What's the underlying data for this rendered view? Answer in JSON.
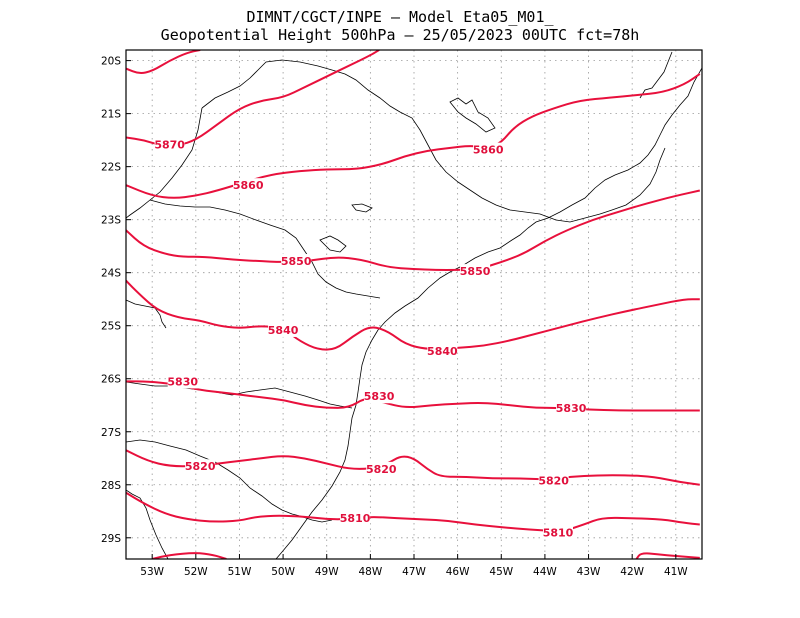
{
  "header": {
    "line1": "DIMNT/CGCT/INPE –  Model Eta05_M01_",
    "line2": "Geopotential Height 500hPa –  25/05/2023 00UTC fct=78h"
  },
  "map_data": {
    "lon_range": [
      -53.6,
      -40.4
    ],
    "lat_range": [
      -29.4,
      -19.8
    ],
    "x_ticks": [
      {
        "value": -53,
        "label": "53W"
      },
      {
        "value": -52,
        "label": "52W"
      },
      {
        "value": -51,
        "label": "51W"
      },
      {
        "value": -50,
        "label": "50W"
      },
      {
        "value": -49,
        "label": "49W"
      },
      {
        "value": -48,
        "label": "48W"
      },
      {
        "value": -47,
        "label": "47W"
      },
      {
        "value": -46,
        "label": "46W"
      },
      {
        "value": -45,
        "label": "45W"
      },
      {
        "value": -44,
        "label": "44W"
      },
      {
        "value": -43,
        "label": "43W"
      },
      {
        "value": -42,
        "label": "42W"
      },
      {
        "value": -41,
        "label": "41W"
      }
    ],
    "y_ticks": [
      {
        "value": -20,
        "label": "20S"
      },
      {
        "value": -21,
        "label": "21S"
      },
      {
        "value": -22,
        "label": "22S"
      },
      {
        "value": -23,
        "label": "23S"
      },
      {
        "value": -24,
        "label": "24S"
      },
      {
        "value": -25,
        "label": "25S"
      },
      {
        "value": -26,
        "label": "26S"
      },
      {
        "value": -27,
        "label": "27S"
      },
      {
        "value": -28,
        "label": "28S"
      },
      {
        "value": -29,
        "label": "29S"
      }
    ],
    "grid": true,
    "contour_color": "#e8103c",
    "boundary_color": "#000000",
    "contours": [
      {
        "level": 5880,
        "points": [
          [
            -53.6,
            -20.15
          ],
          [
            -53.3,
            -20.25
          ],
          [
            -53.0,
            -20.2
          ],
          [
            -52.6,
            -20.0
          ],
          [
            -52.2,
            -19.85
          ],
          [
            -51.9,
            -19.8
          ]
        ]
      },
      {
        "level": 5870,
        "points": [
          [
            -53.6,
            -21.45
          ],
          [
            -53.2,
            -21.5
          ],
          [
            -52.8,
            -21.6
          ],
          [
            -52.4,
            -21.6
          ],
          [
            -52.0,
            -21.5
          ],
          [
            -51.5,
            -21.2
          ],
          [
            -51.0,
            -20.9
          ],
          [
            -50.5,
            -20.75
          ],
          [
            -50.0,
            -20.7
          ],
          [
            -49.5,
            -20.5
          ],
          [
            -49.0,
            -20.3
          ],
          [
            -48.5,
            -20.1
          ],
          [
            -48.0,
            -19.9
          ],
          [
            -47.8,
            -19.8
          ]
        ],
        "labels": [
          {
            "text": "5870",
            "lon": -52.6,
            "lat": -21.58
          }
        ]
      },
      {
        "level": 5860,
        "points": [
          [
            -53.6,
            -22.35
          ],
          [
            -53.0,
            -22.55
          ],
          [
            -52.5,
            -22.6
          ],
          [
            -52.0,
            -22.55
          ],
          [
            -51.5,
            -22.45
          ],
          [
            -50.9,
            -22.3
          ],
          [
            -50.3,
            -22.15
          ],
          [
            -49.6,
            -22.08
          ],
          [
            -49.0,
            -22.05
          ],
          [
            -48.3,
            -22.05
          ],
          [
            -47.7,
            -21.95
          ],
          [
            -47.2,
            -21.8
          ],
          [
            -46.7,
            -21.7
          ],
          [
            -46.2,
            -21.65
          ],
          [
            -45.7,
            -21.6
          ],
          [
            -45.3,
            -21.65
          ],
          [
            -45.0,
            -21.55
          ],
          [
            -44.7,
            -21.25
          ],
          [
            -44.3,
            -21.05
          ],
          [
            -43.8,
            -20.9
          ],
          [
            -43.2,
            -20.75
          ],
          [
            -42.5,
            -20.7
          ],
          [
            -41.9,
            -20.65
          ],
          [
            -41.3,
            -20.6
          ],
          [
            -40.8,
            -20.45
          ],
          [
            -40.45,
            -20.25
          ]
        ],
        "labels": [
          {
            "text": "5860",
            "lon": -50.8,
            "lat": -22.35
          },
          {
            "text": "5860",
            "lon": -45.3,
            "lat": -21.68
          }
        ]
      },
      {
        "level": 5850,
        "points": [
          [
            -53.6,
            -23.2
          ],
          [
            -53.2,
            -23.5
          ],
          [
            -52.7,
            -23.65
          ],
          [
            -52.3,
            -23.7
          ],
          [
            -51.8,
            -23.7
          ],
          [
            -51.2,
            -23.75
          ],
          [
            -50.6,
            -23.78
          ],
          [
            -50.0,
            -23.8
          ],
          [
            -49.4,
            -23.78
          ],
          [
            -48.8,
            -23.7
          ],
          [
            -48.2,
            -23.75
          ],
          [
            -47.6,
            -23.9
          ],
          [
            -47.0,
            -23.93
          ],
          [
            -46.5,
            -23.95
          ],
          [
            -46.0,
            -23.95
          ],
          [
            -45.5,
            -23.93
          ],
          [
            -45.0,
            -23.8
          ],
          [
            -44.5,
            -23.65
          ],
          [
            -44.0,
            -23.4
          ],
          [
            -43.5,
            -23.2
          ],
          [
            -42.9,
            -23.0
          ],
          [
            -42.3,
            -22.85
          ],
          [
            -41.7,
            -22.7
          ],
          [
            -41.0,
            -22.55
          ],
          [
            -40.45,
            -22.45
          ]
        ],
        "labels": [
          {
            "text": "5850",
            "lon": -49.7,
            "lat": -23.78
          },
          {
            "text": "5850",
            "lon": -45.6,
            "lat": -23.97
          }
        ]
      },
      {
        "level": 5840,
        "points": [
          [
            -53.6,
            -24.15
          ],
          [
            -53.3,
            -24.4
          ],
          [
            -52.9,
            -24.7
          ],
          [
            -52.4,
            -24.85
          ],
          [
            -51.9,
            -24.9
          ],
          [
            -51.5,
            -25.0
          ],
          [
            -51.0,
            -25.05
          ],
          [
            -50.5,
            -25.0
          ],
          [
            -50.0,
            -25.05
          ],
          [
            -49.6,
            -25.3
          ],
          [
            -49.2,
            -25.45
          ],
          [
            -48.8,
            -25.45
          ],
          [
            -48.4,
            -25.2
          ],
          [
            -48.0,
            -25.0
          ],
          [
            -47.6,
            -25.1
          ],
          [
            -47.2,
            -25.35
          ],
          [
            -46.7,
            -25.45
          ],
          [
            -46.0,
            -25.42
          ],
          [
            -45.4,
            -25.38
          ],
          [
            -44.8,
            -25.28
          ],
          [
            -44.2,
            -25.15
          ],
          [
            -43.5,
            -25.0
          ],
          [
            -42.8,
            -24.85
          ],
          [
            -42.1,
            -24.72
          ],
          [
            -41.4,
            -24.6
          ],
          [
            -40.8,
            -24.5
          ],
          [
            -40.45,
            -24.5
          ]
        ],
        "labels": [
          {
            "text": "5840",
            "lon": -50.0,
            "lat": -25.08
          },
          {
            "text": "5840",
            "lon": -46.35,
            "lat": -25.48
          }
        ]
      },
      {
        "level": 5830,
        "points": [
          [
            -53.6,
            -26.05
          ],
          [
            -53.1,
            -26.05
          ],
          [
            -52.5,
            -26.1
          ],
          [
            -52.0,
            -26.2
          ],
          [
            -51.5,
            -26.25
          ],
          [
            -51.0,
            -26.3
          ],
          [
            -50.5,
            -26.35
          ],
          [
            -50.0,
            -26.4
          ],
          [
            -49.5,
            -26.5
          ],
          [
            -49.0,
            -26.55
          ],
          [
            -48.5,
            -26.55
          ],
          [
            -48.1,
            -26.35
          ],
          [
            -47.7,
            -26.45
          ],
          [
            -47.2,
            -26.55
          ],
          [
            -46.6,
            -26.5
          ],
          [
            -46.0,
            -26.47
          ],
          [
            -45.4,
            -26.45
          ],
          [
            -44.8,
            -26.5
          ],
          [
            -44.2,
            -26.55
          ],
          [
            -43.6,
            -26.55
          ],
          [
            -43.0,
            -26.58
          ],
          [
            -42.3,
            -26.6
          ],
          [
            -41.6,
            -26.6
          ],
          [
            -41.0,
            -26.6
          ],
          [
            -40.45,
            -26.6
          ]
        ],
        "labels": [
          {
            "text": "5830",
            "lon": -52.3,
            "lat": -26.05
          },
          {
            "text": "5830",
            "lon": -47.8,
            "lat": -26.33
          },
          {
            "text": "5830",
            "lon": -43.4,
            "lat": -26.55
          }
        ]
      },
      {
        "level": 5820,
        "points": [
          [
            -53.6,
            -27.35
          ],
          [
            -53.1,
            -27.55
          ],
          [
            -52.6,
            -27.65
          ],
          [
            -52.0,
            -27.65
          ],
          [
            -51.5,
            -27.6
          ],
          [
            -51.0,
            -27.55
          ],
          [
            -50.5,
            -27.5
          ],
          [
            -50.0,
            -27.45
          ],
          [
            -49.5,
            -27.5
          ],
          [
            -49.0,
            -27.6
          ],
          [
            -48.5,
            -27.7
          ],
          [
            -48.0,
            -27.7
          ],
          [
            -47.6,
            -27.6
          ],
          [
            -47.3,
            -27.45
          ],
          [
            -47.0,
            -27.5
          ],
          [
            -46.7,
            -27.7
          ],
          [
            -46.4,
            -27.85
          ],
          [
            -45.8,
            -27.85
          ],
          [
            -45.2,
            -27.88
          ],
          [
            -44.6,
            -27.88
          ],
          [
            -44.0,
            -27.9
          ],
          [
            -43.4,
            -27.85
          ],
          [
            -42.8,
            -27.82
          ],
          [
            -42.1,
            -27.82
          ],
          [
            -41.5,
            -27.85
          ],
          [
            -40.9,
            -27.95
          ],
          [
            -40.45,
            -28.0
          ]
        ],
        "labels": [
          {
            "text": "5820",
            "lon": -51.9,
            "lat": -27.65
          },
          {
            "text": "5820",
            "lon": -47.75,
            "lat": -27.7
          },
          {
            "text": "5820",
            "lon": -43.8,
            "lat": -27.92
          }
        ]
      },
      {
        "level": 5810,
        "points": [
          [
            -53.6,
            -28.15
          ],
          [
            -53.2,
            -28.35
          ],
          [
            -52.7,
            -28.55
          ],
          [
            -52.2,
            -28.65
          ],
          [
            -51.6,
            -28.7
          ],
          [
            -51.0,
            -28.68
          ],
          [
            -50.6,
            -28.6
          ],
          [
            -50.1,
            -28.58
          ],
          [
            -49.5,
            -28.6
          ],
          [
            -49.0,
            -28.65
          ],
          [
            -48.5,
            -28.65
          ],
          [
            -48.0,
            -28.6
          ],
          [
            -47.4,
            -28.63
          ],
          [
            -46.8,
            -28.65
          ],
          [
            -46.2,
            -28.68
          ],
          [
            -45.6,
            -28.75
          ],
          [
            -45.0,
            -28.8
          ],
          [
            -44.3,
            -28.85
          ],
          [
            -43.6,
            -28.88
          ],
          [
            -43.1,
            -28.75
          ],
          [
            -42.7,
            -28.62
          ],
          [
            -42.0,
            -28.63
          ],
          [
            -41.3,
            -28.65
          ],
          [
            -40.8,
            -28.72
          ],
          [
            -40.45,
            -28.75
          ]
        ],
        "labels": [
          {
            "text": "5810",
            "lon": -48.35,
            "lat": -28.63
          },
          {
            "text": "5810",
            "lon": -43.7,
            "lat": -28.9
          }
        ]
      },
      {
        "level": 5800,
        "points": [
          [
            -53.0,
            -29.4
          ],
          [
            -52.6,
            -29.32
          ],
          [
            -52.0,
            -29.28
          ],
          [
            -51.6,
            -29.32
          ],
          [
            -51.3,
            -29.4
          ]
        ]
      },
      {
        "level": 5800,
        "points": [
          [
            -41.9,
            -29.4
          ],
          [
            -41.8,
            -29.28
          ],
          [
            -41.3,
            -29.32
          ],
          [
            -40.9,
            -29.35
          ],
          [
            -40.45,
            -29.38
          ]
        ]
      }
    ]
  }
}
